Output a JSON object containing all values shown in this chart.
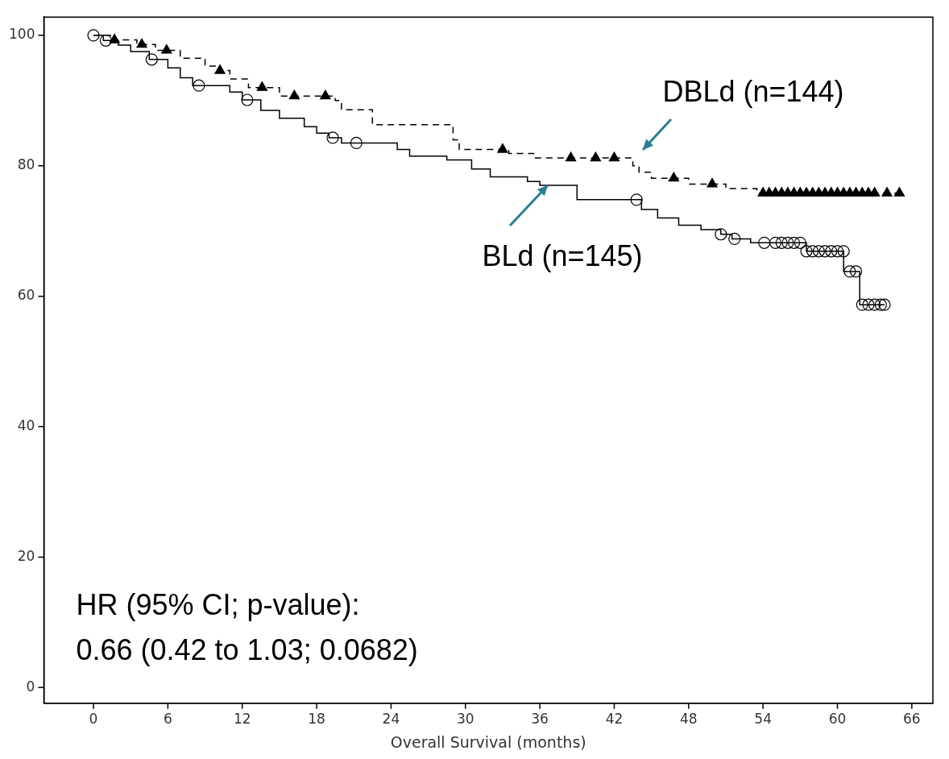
{
  "chart_data": {
    "type": "step",
    "xlabel": "Overall Survival (months)",
    "xlim": [
      -4,
      67.7
    ],
    "xticks": [
      0,
      6,
      12,
      18,
      24,
      30,
      36,
      42,
      48,
      54,
      60,
      66
    ],
    "ylim": [
      -2.4,
      102.8
    ],
    "yticks": [
      0,
      20,
      40,
      60,
      80,
      100
    ],
    "grid": false,
    "legend": false,
    "annotations": [
      "HR (95% CI; p-value):",
      "0.66 (0.42 to 1.03; 0.0682)"
    ],
    "series": [
      {
        "name": "DBLd (n=144)",
        "color": "#000000",
        "line_style": "dashed",
        "marker": "none",
        "x": [
          0,
          1.5,
          3.5,
          5,
          7,
          9,
          10,
          11,
          12.5,
          15,
          19.5,
          20,
          22.5,
          29,
          29.5,
          33.5,
          35.5,
          43.5,
          44,
          45,
          48,
          51,
          53.5,
          65
        ],
        "values": [
          100,
          99.3,
          98.6,
          97.7,
          96.5,
          95.3,
          94.6,
          93.3,
          92,
          90.7,
          90,
          88.6,
          86.3,
          84,
          82.5,
          81.9,
          81.2,
          80,
          79,
          78.1,
          77.2,
          76.5,
          75.8,
          75.8
        ]
      },
      {
        "name": "BLd (n=145)",
        "color": "#000000",
        "line_style": "solid",
        "marker": "none",
        "x": [
          0,
          0.8,
          2,
          3,
          4.5,
          6,
          7,
          8,
          11,
          12,
          13.5,
          15,
          17,
          18,
          19,
          20,
          24.5,
          25.5,
          28.5,
          30.5,
          32,
          35,
          36,
          39,
          44.2,
          45.5,
          47.2,
          49,
          50.6,
          51.5,
          53,
          57.5,
          60.5,
          61.8,
          63.8
        ],
        "values": [
          100,
          99.2,
          98.5,
          97.5,
          96.3,
          95,
          93.5,
          92.3,
          91.3,
          90.1,
          88.5,
          87.3,
          86,
          85,
          84.3,
          83.5,
          82.5,
          81.5,
          80.9,
          79.5,
          78.3,
          77.6,
          77,
          74.8,
          73.3,
          72,
          70.9,
          70.2,
          69.5,
          68.8,
          68.2,
          66.9,
          63.8,
          58.7,
          58.7
        ]
      },
      {
        "type": "scatter",
        "color": "#000000",
        "marker": "triangle",
        "x": [
          1.7,
          3.9,
          5.9,
          10.2,
          13.6,
          16.2,
          18.7,
          33,
          38.5,
          40.5,
          42,
          46.8,
          49.9,
          54,
          54.5,
          55,
          55.5,
          56,
          56.5,
          57,
          57.5,
          58,
          58.5,
          59,
          59.5,
          60,
          60.5,
          61,
          61.5,
          62,
          62.5,
          63,
          64,
          65
        ],
        "values": [
          99.3,
          98.6,
          97.7,
          94.6,
          92,
          90.7,
          90.7,
          82.5,
          81.2,
          81.2,
          81.2,
          78.1,
          77.2,
          75.8,
          75.8,
          75.8,
          75.8,
          75.8,
          75.8,
          75.8,
          75.8,
          75.8,
          75.8,
          75.8,
          75.8,
          75.8,
          75.8,
          75.8,
          75.8,
          75.8,
          75.8,
          75.8,
          75.8,
          75.8
        ]
      },
      {
        "type": "scatter",
        "color": "#000000",
        "marker": "circle",
        "x": [
          0,
          1,
          4.7,
          8.5,
          12.4,
          19.3,
          21.2,
          43.8,
          50.6,
          51.7,
          54.1,
          55,
          55.5,
          56,
          56.5,
          57,
          57.5,
          58,
          58.5,
          59,
          59.5,
          60,
          60.5,
          61,
          61.5,
          62,
          62.5,
          63,
          63.5,
          63.8
        ],
        "values": [
          100,
          99.2,
          96.3,
          92.3,
          90.1,
          84.3,
          83.5,
          74.8,
          69.5,
          68.8,
          68.2,
          68.2,
          68.2,
          68.2,
          68.2,
          68.2,
          66.9,
          66.9,
          66.9,
          66.9,
          66.9,
          66.9,
          66.9,
          63.8,
          63.8,
          58.7,
          58.7,
          58.7,
          58.7,
          58.7
        ]
      }
    ]
  }
}
